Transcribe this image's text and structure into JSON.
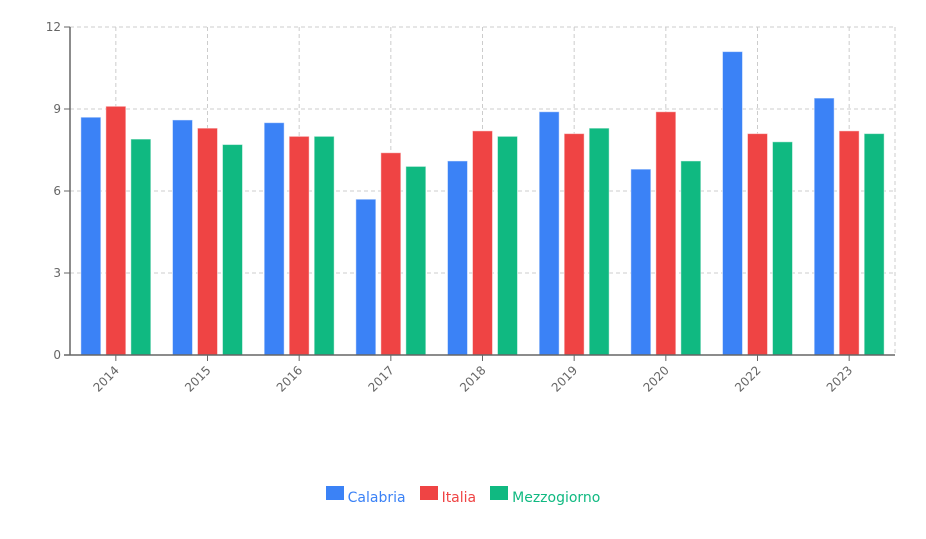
{
  "chart_data": {
    "type": "bar",
    "title": "",
    "xlabel": "",
    "ylabel": "",
    "categories": [
      "2014",
      "2015",
      "2016",
      "2017",
      "2018",
      "2019",
      "2020",
      "2022",
      "2023"
    ],
    "series": [
      {
        "name": "Calabria",
        "color": "#3b82f6",
        "values": [
          8.7,
          8.6,
          8.5,
          5.7,
          7.1,
          8.9,
          6.8,
          11.1,
          9.4
        ]
      },
      {
        "name": "Italia",
        "color": "#ef4444",
        "values": [
          9.1,
          8.3,
          8.0,
          7.4,
          8.2,
          8.1,
          8.9,
          8.1,
          8.2
        ]
      },
      {
        "name": "Mezzogiorno",
        "color": "#10b981",
        "values": [
          7.9,
          7.7,
          8.0,
          6.9,
          8.0,
          8.3,
          7.1,
          7.8,
          8.1
        ]
      }
    ],
    "ylim": [
      0,
      12
    ],
    "yticks": [
      0,
      3,
      6,
      9,
      12
    ],
    "grid": true,
    "legend_position": "bottom"
  },
  "legend": {
    "items": [
      {
        "label": "Calabria",
        "color": "#3b82f6"
      },
      {
        "label": "Italia",
        "color": "#ef4444"
      },
      {
        "label": "Mezzogiorno",
        "color": "#10b981"
      }
    ]
  }
}
